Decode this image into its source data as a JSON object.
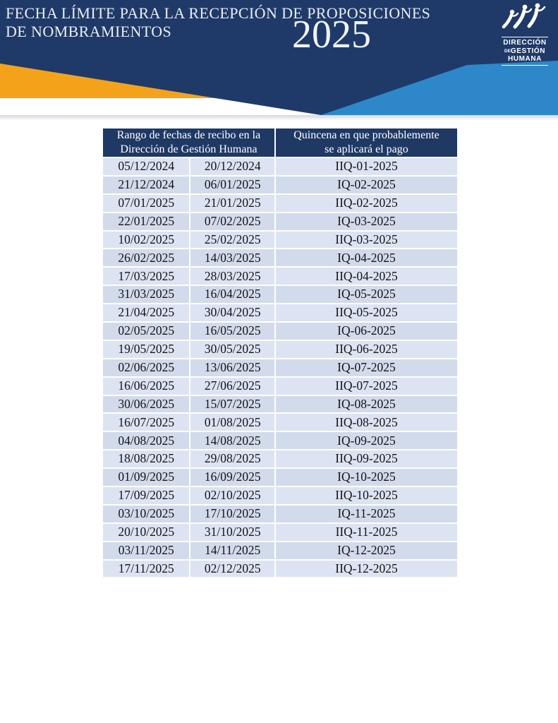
{
  "page": {
    "title_line1": "FECHA LÍMITE PARA LA RECEPCIÓN DE PROPOSICIONES",
    "title_line2": "DE NOMBRAMIENTOS",
    "year": "2025"
  },
  "logo": {
    "icon": "dancing-figures-icon",
    "org_line1": "DIRECCIÓN",
    "org_line2_small": "DE",
    "org_line2": "GESTIÓN",
    "org_line3": "HUMANA"
  },
  "colors": {
    "banner_navy": "#1F3A68",
    "table_header_navy": "#1F3864",
    "accent_orange": "#F5A21B",
    "accent_blue": "#2E87C8",
    "row_odd": "#DCE3F2",
    "row_even": "#D2DBEB"
  },
  "table": {
    "header": {
      "col_range_line1": "Rango de fechas de recibo en la",
      "col_range_line2": "Dirección de Gestión Humana",
      "col_quincena_line1": "Quincena en que probablemente",
      "col_quincena_line2": "se aplicará el pago"
    },
    "rows": [
      {
        "from": "05/12/2024",
        "to": "20/12/2024",
        "quincena": "IIQ-01-2025"
      },
      {
        "from": "21/12/2024",
        "to": "06/01/2025",
        "quincena": "IQ-02-2025"
      },
      {
        "from": "07/01/2025",
        "to": "21/01/2025",
        "quincena": "IIQ-02-2025"
      },
      {
        "from": "22/01/2025",
        "to": "07/02/2025",
        "quincena": "IQ-03-2025"
      },
      {
        "from": "10/02/2025",
        "to": "25/02/2025",
        "quincena": "IIQ-03-2025"
      },
      {
        "from": "26/02/2025",
        "to": "14/03/2025",
        "quincena": "IQ-04-2025"
      },
      {
        "from": "17/03/2025",
        "to": "28/03/2025",
        "quincena": "IIQ-04-2025"
      },
      {
        "from": "31/03/2025",
        "to": "16/04/2025",
        "quincena": "IQ-05-2025"
      },
      {
        "from": "21/04/2025",
        "to": "30/04/2025",
        "quincena": "IIQ-05-2025"
      },
      {
        "from": "02/05/2025",
        "to": "16/05/2025",
        "quincena": "IQ-06-2025"
      },
      {
        "from": "19/05/2025",
        "to": "30/05/2025",
        "quincena": "IIQ-06-2025"
      },
      {
        "from": "02/06/2025",
        "to": "13/06/2025",
        "quincena": "IQ-07-2025"
      },
      {
        "from": "16/06/2025",
        "to": "27/06/2025",
        "quincena": "IIQ-07-2025"
      },
      {
        "from": "30/06/2025",
        "to": "15/07/2025",
        "quincena": "IQ-08-2025"
      },
      {
        "from": "16/07/2025",
        "to": "01/08/2025",
        "quincena": "IIQ-08-2025"
      },
      {
        "from": "04/08/2025",
        "to": "14/08/2025",
        "quincena": "IQ-09-2025"
      },
      {
        "from": "18/08/2025",
        "to": "29/08/2025",
        "quincena": "IIQ-09-2025"
      },
      {
        "from": "01/09/2025",
        "to": "16/09/2025",
        "quincena": "IQ-10-2025"
      },
      {
        "from": "17/09/2025",
        "to": "02/10/2025",
        "quincena": "IIQ-10-2025"
      },
      {
        "from": "03/10/2025",
        "to": "17/10/2025",
        "quincena": "IQ-11-2025"
      },
      {
        "from": "20/10/2025",
        "to": "31/10/2025",
        "quincena": "IIQ-11-2025"
      },
      {
        "from": "03/11/2025",
        "to": "14/11/2025",
        "quincena": "IQ-12-2025"
      },
      {
        "from": "17/11/2025",
        "to": "02/12/2025",
        "quincena": "IIQ-12-2025"
      }
    ]
  }
}
